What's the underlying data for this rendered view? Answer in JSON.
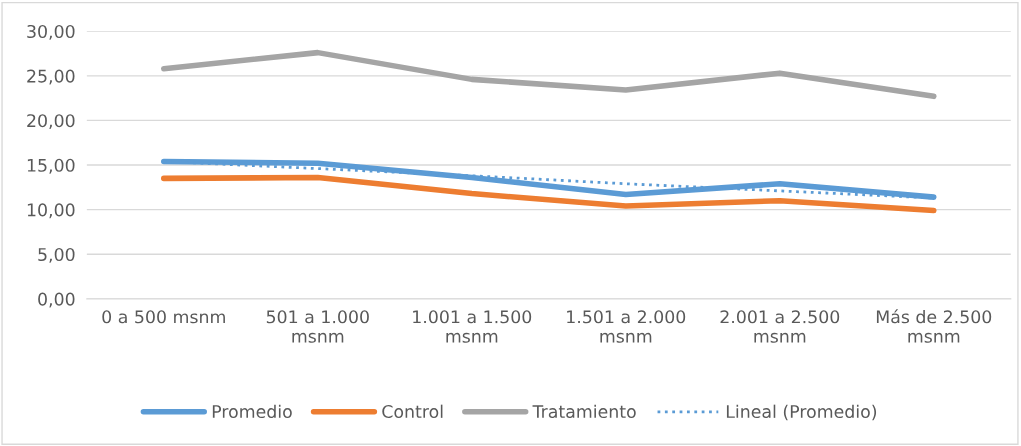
{
  "chart_data": {
    "type": "line",
    "categories": [
      "0 a 500 msnm",
      "501 a 1.000 msnm",
      "1.001 a 1.500 msnm",
      "1.501 a 2.000 msnm",
      "2.001 a 2.500 msnm",
      "Más de 2.500 msnm"
    ],
    "series": [
      {
        "name": "Promedio",
        "color": "#5b9bd5",
        "values": [
          15.4,
          15.2,
          13.6,
          11.7,
          12.9,
          11.4
        ]
      },
      {
        "name": "Control",
        "color": "#ed7d31",
        "values": [
          13.5,
          13.6,
          11.8,
          10.4,
          11.0,
          9.9
        ]
      },
      {
        "name": "Tratamiento",
        "color": "#a5a5a5",
        "values": [
          25.8,
          27.6,
          24.6,
          23.4,
          25.3,
          22.7
        ]
      },
      {
        "name": "Lineal (Promedio)",
        "color": "#5b9bd5",
        "line_style": "dotted",
        "values": [
          15.4,
          14.6,
          13.8,
          12.9,
          12.1,
          11.3
        ]
      }
    ],
    "ylim": [
      0,
      30
    ],
    "yticks": [
      {
        "value": 0,
        "label": "0,00"
      },
      {
        "value": 5,
        "label": "5,00"
      },
      {
        "value": 10,
        "label": "10,00"
      },
      {
        "value": 15,
        "label": "15,00"
      },
      {
        "value": 20,
        "label": "20,00"
      },
      {
        "value": 25,
        "label": "25,00"
      },
      {
        "value": 30,
        "label": "30,00"
      }
    ],
    "grid": "y",
    "legend": "bottom",
    "marker": "none"
  }
}
